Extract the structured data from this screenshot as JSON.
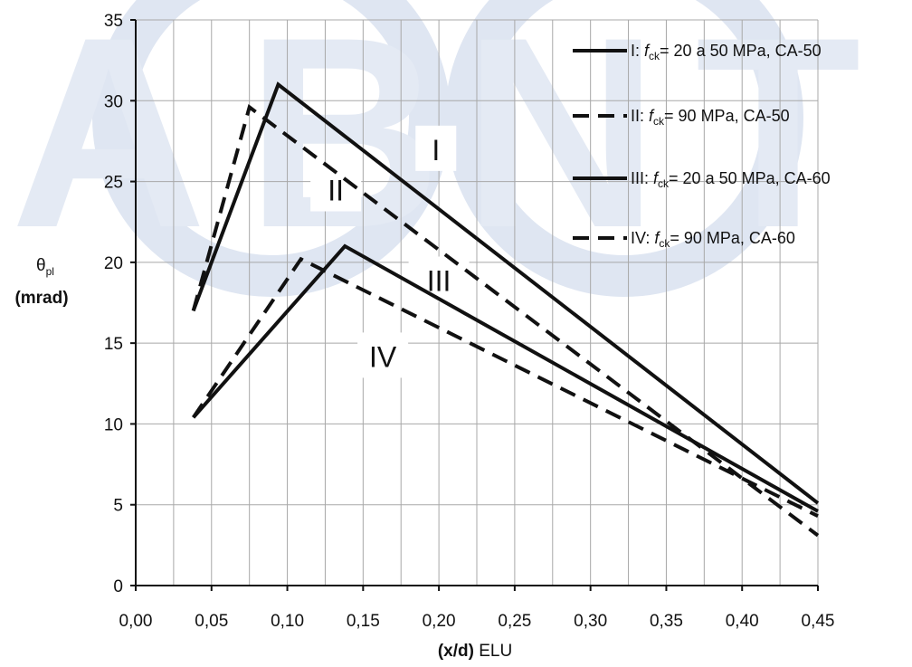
{
  "chart_data": {
    "type": "line",
    "ylabel": "θ_pl (mrad)",
    "ylabel_symbol": "θ",
    "ylabel_subscript": "pl",
    "ylabel_unit": "(mrad)",
    "xlabel_bold": "(x/d)",
    "xlabel_rest": " ELU",
    "xlim": [
      0,
      0.45
    ],
    "ylim": [
      0,
      35
    ],
    "xticks": [
      "0,00",
      "0,05",
      "0,10",
      "0,15",
      "0,20",
      "0,25",
      "0,30",
      "0,35",
      "0,40",
      "0,45"
    ],
    "yticks": [
      "0",
      "5",
      "10",
      "15",
      "20",
      "25",
      "30",
      "35"
    ],
    "grid": true,
    "legend_position": "top-right",
    "series": [
      {
        "id": "I",
        "name": "I: fck= 20  a 50 MPa, CA-50",
        "legend": {
          "prefix": "I: ",
          "f": "f",
          "sub": "ck",
          "rest": "= 20  a 50 MPa, CA-50"
        },
        "style": "solid",
        "x": [
          0.038,
          0.094,
          0.45
        ],
        "y": [
          17.0,
          31.0,
          5.1
        ]
      },
      {
        "id": "II",
        "name": "II: fck= 90  MPa, CA-50",
        "legend": {
          "prefix": "II: ",
          "f": "f",
          "sub": "ck",
          "rest": "= 90  MPa, CA-50"
        },
        "style": "dashed",
        "x": [
          0.038,
          0.075,
          0.45
        ],
        "y": [
          17.0,
          29.6,
          3.1
        ]
      },
      {
        "id": "III",
        "name": "III: fck= 20  a 50 MPa, CA-60",
        "legend": {
          "prefix": "III: ",
          "f": "f",
          "sub": "ck",
          "rest": "= 20  a 50 MPa, CA-60"
        },
        "style": "solid",
        "x": [
          0.038,
          0.138,
          0.45
        ],
        "y": [
          10.4,
          21.0,
          4.6
        ]
      },
      {
        "id": "IV",
        "name": "IV: fck= 90  MPa, CA-60",
        "legend": {
          "prefix": "IV: ",
          "f": "f",
          "sub": "ck",
          "rest": "= 90  MPa, CA-60"
        },
        "style": "dashed",
        "x": [
          0.038,
          0.109,
          0.45
        ],
        "y": [
          10.4,
          20.2,
          4.3
        ]
      }
    ],
    "annotations": [
      {
        "text": "I",
        "x": 0.198,
        "y": 27.0
      },
      {
        "text": "II",
        "x": 0.132,
        "y": 24.5
      },
      {
        "text": "III",
        "x": 0.2,
        "y": 18.9
      },
      {
        "text": "IV",
        "x": 0.163,
        "y": 14.2
      }
    ],
    "colors": {
      "line": "#111111",
      "grid": "#a8a8a8",
      "watermark": "#dfe6f2"
    },
    "watermark_letters": [
      "A",
      "B",
      "N",
      "T"
    ]
  }
}
